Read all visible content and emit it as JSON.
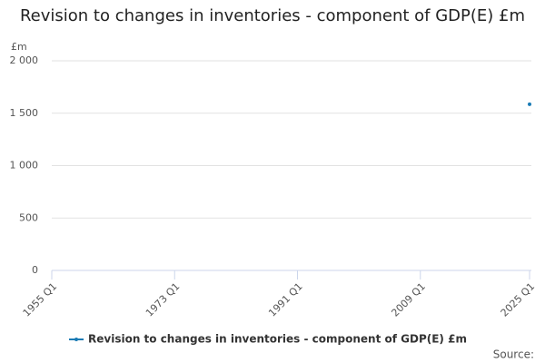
{
  "chart_data": {
    "type": "line",
    "title": "Revision to changes in inventories - component of GDP(E) £m",
    "y_unit": "£m",
    "x": [
      2025
    ],
    "xlim": [
      1955,
      2025
    ],
    "xticks": [
      {
        "value": 1955,
        "label": "1955 Q1"
      },
      {
        "value": 1973,
        "label": "1973 Q1"
      },
      {
        "value": 1991,
        "label": "1991 Q1"
      },
      {
        "value": 2009,
        "label": "2009 Q1"
      },
      {
        "value": 2025,
        "label": "2025 Q1"
      }
    ],
    "series": [
      {
        "name": "Revision to changes in inventories - component of GDP(E) £m",
        "color": "#1a7bb5",
        "values": [
          1585
        ]
      }
    ],
    "ylim": [
      0,
      2000
    ],
    "yticks": [
      0,
      500,
      {
        "value": 1000,
        "label": "1 000"
      },
      {
        "value": 1500,
        "label": "1 500"
      },
      {
        "value": 2000,
        "label": "2 000"
      }
    ],
    "grid": true,
    "source_label": "Source:"
  }
}
